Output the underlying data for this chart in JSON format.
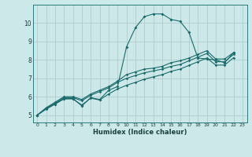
{
  "title": "",
  "xlabel": "Humidex (Indice chaleur)",
  "ylabel": "",
  "background_color": "#cce8e8",
  "plot_bg_color": "#cce8e8",
  "grid_color": "#b0cccc",
  "line_color": "#1a6b6b",
  "xlim": [
    -0.5,
    23.5
  ],
  "ylim": [
    4.6,
    11.0
  ],
  "xticks": [
    0,
    1,
    2,
    3,
    4,
    5,
    6,
    7,
    8,
    9,
    10,
    11,
    12,
    13,
    14,
    15,
    16,
    17,
    18,
    19,
    20,
    21,
    22,
    23
  ],
  "yticks": [
    5,
    6,
    7,
    8,
    9,
    10
  ],
  "series": [
    [
      5.0,
      5.35,
      5.6,
      5.9,
      5.9,
      5.5,
      5.95,
      5.85,
      6.35,
      6.55,
      8.7,
      9.75,
      10.35,
      10.5,
      10.5,
      10.2,
      10.1,
      9.5,
      8.1,
      8.05,
      8.0,
      7.85,
      8.4
    ],
    [
      5.0,
      5.4,
      5.7,
      6.0,
      6.0,
      5.85,
      6.15,
      6.35,
      6.55,
      6.85,
      7.2,
      7.35,
      7.5,
      7.55,
      7.65,
      7.85,
      7.95,
      8.1,
      8.3,
      8.5,
      8.05,
      8.05,
      8.4
    ],
    [
      5.0,
      5.38,
      5.65,
      5.95,
      5.95,
      5.78,
      6.08,
      6.28,
      6.48,
      6.78,
      7.0,
      7.15,
      7.3,
      7.4,
      7.5,
      7.65,
      7.75,
      7.95,
      8.15,
      8.35,
      7.9,
      7.9,
      8.3
    ],
    [
      5.0,
      5.32,
      5.6,
      5.88,
      5.88,
      5.55,
      5.92,
      5.82,
      6.15,
      6.42,
      6.62,
      6.78,
      6.95,
      7.08,
      7.2,
      7.38,
      7.5,
      7.7,
      7.9,
      8.1,
      7.72,
      7.72,
      8.12
    ]
  ]
}
